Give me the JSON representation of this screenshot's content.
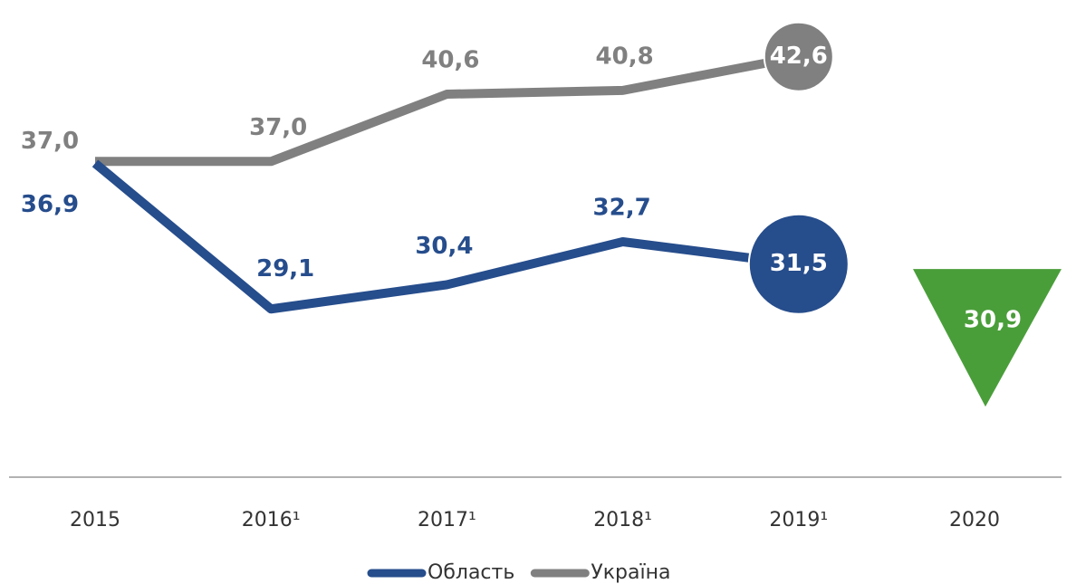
{
  "chart_data": {
    "type": "line",
    "categories": [
      "2015",
      "2016¹",
      "2017¹",
      "2018¹",
      "2019¹",
      "2020"
    ],
    "series": [
      {
        "name": "Область",
        "color": "#264d8c",
        "values": [
          36.9,
          29.1,
          30.4,
          32.7,
          31.5,
          null
        ],
        "value_labels": [
          "36,9",
          "29,1",
          "30,4",
          "32,7",
          "31,5",
          null
        ]
      },
      {
        "name": "Україна",
        "color": "#808080",
        "values": [
          37.0,
          37.0,
          40.6,
          40.8,
          42.6,
          null
        ],
        "value_labels": [
          "37,0",
          "37,0",
          "40,6",
          "40,8",
          "42,6",
          null
        ]
      }
    ],
    "forecast": {
      "value": 30.9,
      "value_label": "30,9",
      "color": "#4a9e3a"
    },
    "ylim": [
      20,
      46
    ]
  }
}
